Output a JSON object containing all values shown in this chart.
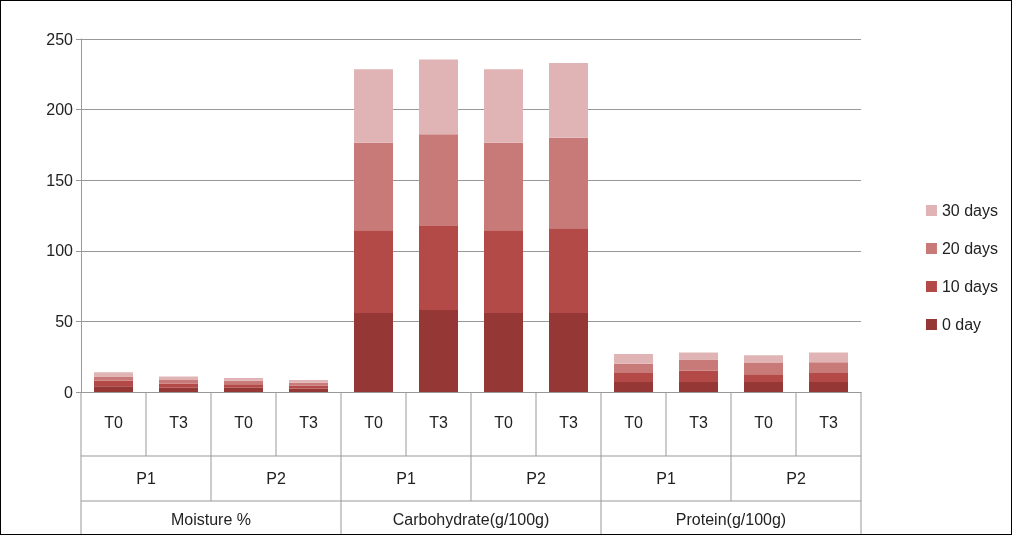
{
  "chart_data": {
    "type": "bar",
    "stacked": true,
    "categories": [
      "T0",
      "T3",
      "T0",
      "T3",
      "T0",
      "T3",
      "T0",
      "T3",
      "T0",
      "T3",
      "T0",
      "T3"
    ],
    "series": [
      {
        "name": "0 day",
        "color": "#953735",
        "values": [
          4,
          3,
          3,
          2.5,
          56,
          58,
          56,
          56,
          7,
          7,
          7,
          7
        ]
      },
      {
        "name": "10 days",
        "color": "#b34a47",
        "values": [
          4,
          3,
          2.5,
          2,
          58.5,
          59.5,
          58.5,
          60,
          6.5,
          8,
          5.5,
          6.5
        ]
      },
      {
        "name": "20 days",
        "color": "#c87a78",
        "values": [
          3,
          2.5,
          2.5,
          2,
          62,
          65,
          62,
          64,
          6.5,
          8,
          8,
          7.5
        ]
      },
      {
        "name": "30 days",
        "color": "#e0b4b4",
        "values": [
          3,
          2.5,
          2,
          2,
          52,
          53,
          52,
          53,
          7,
          5,
          5.5,
          7
        ]
      }
    ],
    "annotations": [
      "P1",
      "P2",
      "P1",
      "P2",
      "P1",
      "P2",
      "Moisture %",
      "Carbohydrate(g/100g)",
      "Protein(g/100g)"
    ],
    "ylim": [
      0,
      250
    ],
    "yticks": [
      0,
      50,
      100,
      150,
      200,
      250
    ],
    "grid": "y",
    "legend": "right"
  }
}
